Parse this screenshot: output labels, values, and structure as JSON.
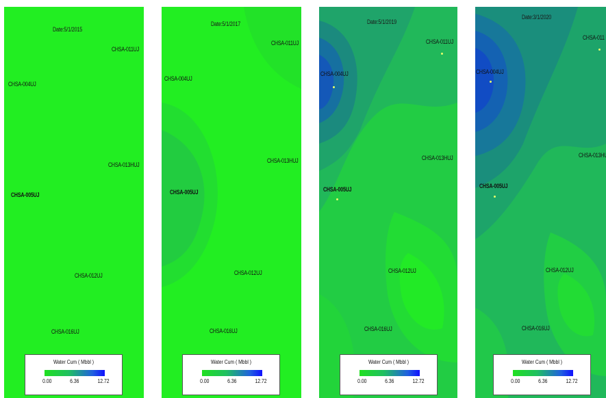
{
  "legend": {
    "title": "Water Cum ( Mbbl )",
    "min": "0.00",
    "mid": "6.36",
    "max": "12.72"
  },
  "panels": [
    {
      "date": "Date:5/1/2015",
      "wells": {
        "w011": "CHSA-011UJ",
        "w004": "CHSA-004UJ",
        "w013": "CHSA-013HUJ",
        "w005": "CHSA-005UJ",
        "w012": "CHSA-012UJ",
        "w016": "CHSA-016UJ"
      }
    },
    {
      "date": "Date:5/1/2017",
      "wells": {
        "w011": "CHSA-011UJ",
        "w004": "CHSA-004UJ",
        "w013": "CHSA-013HUJ",
        "w005": "CHSA-005UJ",
        "w012": "CHSA-012UJ",
        "w016": "CHSA-016UJ"
      }
    },
    {
      "date": "Date:5/1/2019",
      "wells": {
        "w011": "CHSA-011UJ",
        "w004": "CHSA-004UJ",
        "w013": "CHSA-013HUJ",
        "w005": "CHSA-005UJ",
        "w012": "CHSA-012UJ",
        "w016": "CHSA-016UJ"
      }
    },
    {
      "date": "Date:3/1/2020",
      "wells": {
        "w011": "CHSA-011",
        "w004": "CHSA-004UJ",
        "w013": "CHSA-013HU",
        "w005": "CHSA-005UJ",
        "w012": "CHSA-012UJ",
        "w016": "CHSA-016UJ"
      }
    }
  ],
  "colors": {
    "low": "#20e020",
    "mid": "#20b870",
    "high": "#1040d0"
  }
}
